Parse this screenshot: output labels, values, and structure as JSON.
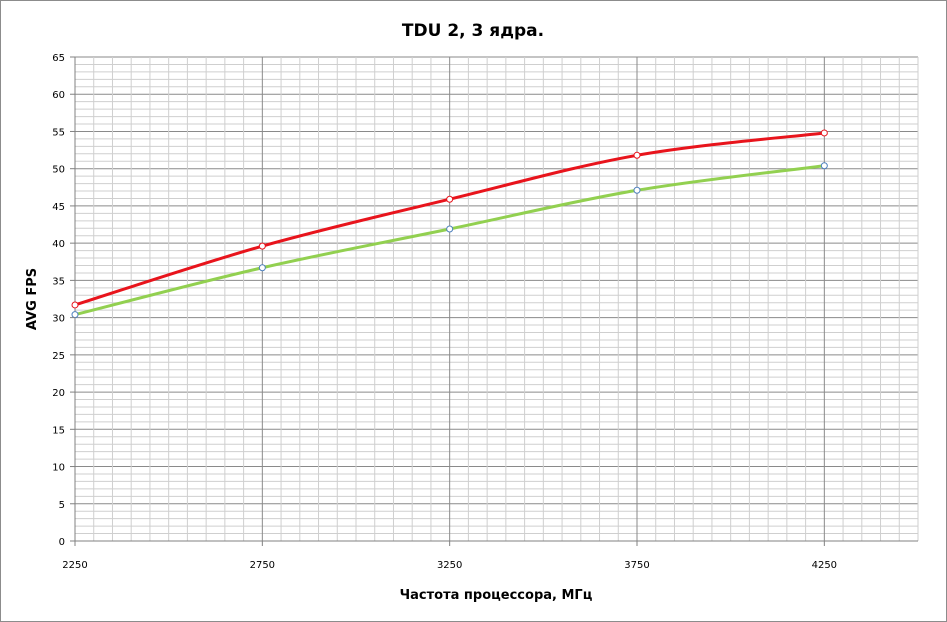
{
  "chart_data": {
    "type": "line",
    "title": "TDU 2, 3 ядра.",
    "xlabel": "Частота процессора, МГц",
    "ylabel": "AVG FPS",
    "xlim": [
      2250,
      4500
    ],
    "ylim": [
      0,
      65
    ],
    "x_ticks": [
      2250,
      2750,
      3250,
      3750,
      4250
    ],
    "y_ticks": [
      0,
      5,
      10,
      15,
      20,
      25,
      30,
      35,
      40,
      45,
      50,
      55,
      60,
      65
    ],
    "x_minor_step": 50,
    "y_minor_step": 1,
    "grid": true,
    "legend": false,
    "series": [
      {
        "color": "#e8141c",
        "x": [
          2250,
          2750,
          3250,
          3750,
          4250
        ],
        "y": [
          31.7,
          39.6,
          45.9,
          51.8,
          54.8
        ]
      },
      {
        "color": "#92d050",
        "marker_color": "#4f81bd",
        "x": [
          2250,
          2750,
          3250,
          3750,
          4250
        ],
        "y": [
          30.4,
          36.7,
          41.9,
          47.1,
          50.4
        ]
      }
    ]
  }
}
